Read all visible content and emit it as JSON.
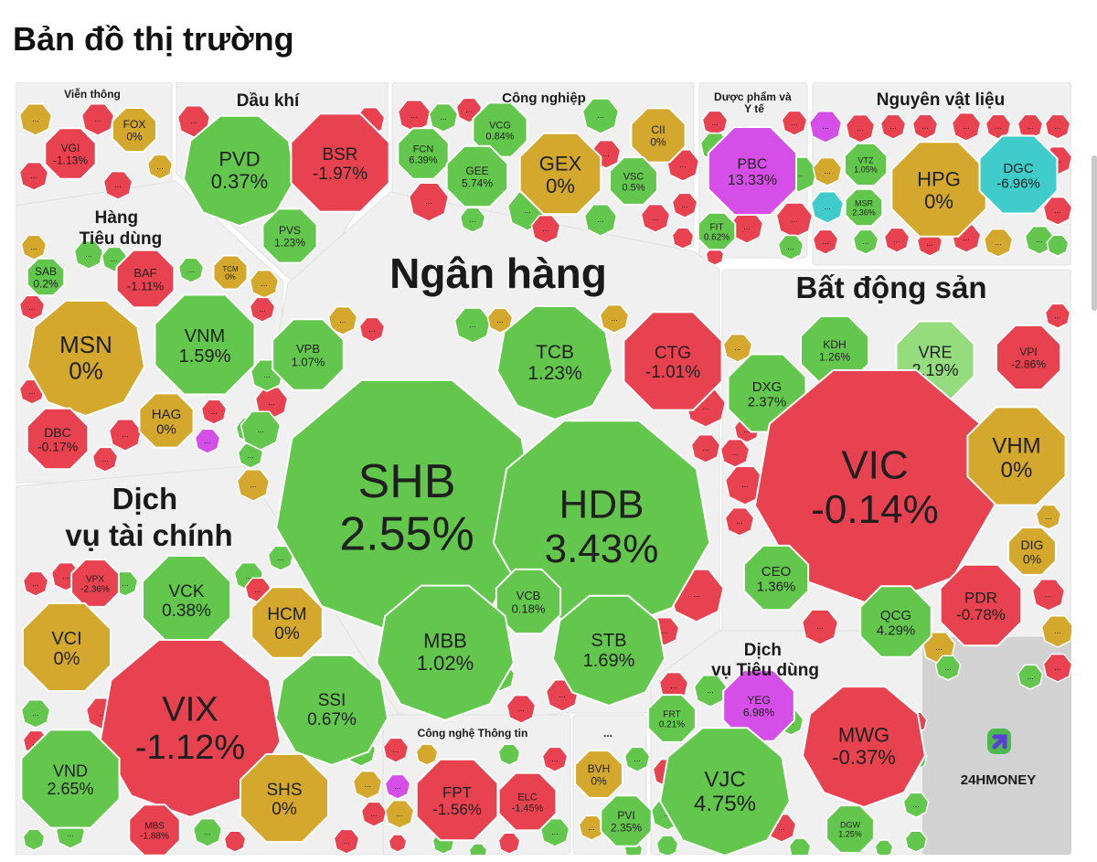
{
  "page": {
    "title": "Bản đồ thị trường",
    "brand": "24HMONEY"
  },
  "colors": {
    "up": "#63c74d",
    "up_light": "#95dc7e",
    "down": "#e8414f",
    "ref": "#d4a82c",
    "ceiling": "#d64ee8",
    "floor": "#3fcccb",
    "sector_bg": "#f0f0f0"
  },
  "chart_data": {
    "type": "treemap",
    "title": "Bản đồ thị trường",
    "sectors": [
      {
        "name": "Viễn thông",
        "stocks": [
          {
            "ticker": "VGI",
            "change": "-1.13%"
          },
          {
            "ticker": "FOX",
            "change": "0%"
          }
        ]
      },
      {
        "name": "Dầu khí",
        "stocks": [
          {
            "ticker": "PVD",
            "change": "0.37%"
          },
          {
            "ticker": "BSR",
            "change": "-1.97%"
          },
          {
            "ticker": "PVS",
            "change": "1.23%"
          }
        ]
      },
      {
        "name": "Công nghiệp",
        "stocks": [
          {
            "ticker": "VCG",
            "change": "0.84%"
          },
          {
            "ticker": "CII",
            "change": "0%"
          },
          {
            "ticker": "FCN",
            "change": "6.39%"
          },
          {
            "ticker": "GEE",
            "change": "5.74%"
          },
          {
            "ticker": "GEX",
            "change": "0%"
          },
          {
            "ticker": "VSC",
            "change": "0.5%"
          }
        ]
      },
      {
        "name": "Dược phẩm và Y tế",
        "stocks": [
          {
            "ticker": "PBC",
            "change": "13.33%"
          },
          {
            "ticker": "FIT",
            "change": "0.62%"
          }
        ]
      },
      {
        "name": "Nguyên vật liệu",
        "stocks": [
          {
            "ticker": "VTZ",
            "change": "1.05%"
          },
          {
            "ticker": "MSR",
            "change": "2.36%"
          },
          {
            "ticker": "HPG",
            "change": "0%"
          },
          {
            "ticker": "DGC",
            "change": "-6.96%"
          }
        ]
      },
      {
        "name": "Hàng Tiêu dùng",
        "stocks": [
          {
            "ticker": "SAB",
            "change": "0.2%"
          },
          {
            "ticker": "BAF",
            "change": "-1.11%"
          },
          {
            "ticker": "TCM",
            "change": "0%"
          },
          {
            "ticker": "MSN",
            "change": "0%"
          },
          {
            "ticker": "VNM",
            "change": "1.59%"
          },
          {
            "ticker": "HAG",
            "change": "0%"
          },
          {
            "ticker": "DBC",
            "change": "-0.17%"
          }
        ]
      },
      {
        "name": "Ngân hàng",
        "stocks": [
          {
            "ticker": "VPB",
            "change": "1.07%"
          },
          {
            "ticker": "TCB",
            "change": "1.23%"
          },
          {
            "ticker": "CTG",
            "change": "-1.01%"
          },
          {
            "ticker": "SHB",
            "change": "2.55%"
          },
          {
            "ticker": "HDB",
            "change": "3.43%"
          },
          {
            "ticker": "VCB",
            "change": "0.18%"
          },
          {
            "ticker": "MBB",
            "change": "1.02%"
          },
          {
            "ticker": "STB",
            "change": "1.69%"
          }
        ]
      },
      {
        "name": "Bất động sản",
        "stocks": [
          {
            "ticker": "KDH",
            "change": "1.26%"
          },
          {
            "ticker": "VRE",
            "change": "2.19%"
          },
          {
            "ticker": "VPI",
            "change": "-2.86%"
          },
          {
            "ticker": "DXG",
            "change": "2.37%"
          },
          {
            "ticker": "VIC",
            "change": "-0.14%"
          },
          {
            "ticker": "VHM",
            "change": "0%"
          },
          {
            "ticker": "DIG",
            "change": "0%"
          },
          {
            "ticker": "CEO",
            "change": "1.36%"
          },
          {
            "ticker": "PDR",
            "change": "-0.78%"
          },
          {
            "ticker": "QCG",
            "change": "4.29%"
          }
        ]
      },
      {
        "name": "Dịch vụ tài chính",
        "stocks": [
          {
            "ticker": "VPX",
            "change": "-2.36%"
          },
          {
            "ticker": "VCK",
            "change": "0.38%"
          },
          {
            "ticker": "HCM",
            "change": "0%"
          },
          {
            "ticker": "VCI",
            "change": "0%"
          },
          {
            "ticker": "VIX",
            "change": "-1.12%"
          },
          {
            "ticker": "SSI",
            "change": "0.67%"
          },
          {
            "ticker": "VND",
            "change": "2.65%"
          },
          {
            "ticker": "SHS",
            "change": "0%"
          },
          {
            "ticker": "MBS",
            "change": "-1.88%"
          }
        ]
      },
      {
        "name": "Công nghệ Thông tin",
        "stocks": [
          {
            "ticker": "FPT",
            "change": "-1.56%"
          },
          {
            "ticker": "ELC",
            "change": "-1.45%"
          }
        ]
      },
      {
        "name": "...",
        "stocks": [
          {
            "ticker": "BVH",
            "change": "0%"
          },
          {
            "ticker": "PVI",
            "change": "2.35%"
          }
        ]
      },
      {
        "name": "Dịch vụ Tiêu dùng",
        "stocks": [
          {
            "ticker": "FRT",
            "change": "0.21%"
          },
          {
            "ticker": "YEG",
            "change": "6.98%"
          },
          {
            "ticker": "MWG",
            "change": "-0.37%"
          },
          {
            "ticker": "VJC",
            "change": "4.75%"
          },
          {
            "ticker": "DGW",
            "change": "1.25%"
          }
        ]
      }
    ]
  }
}
